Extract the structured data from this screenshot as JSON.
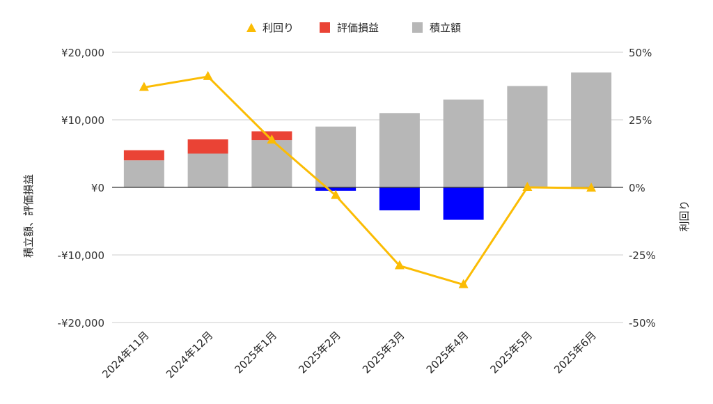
{
  "colors": {
    "contribution": "#b7b7b7",
    "gain_positive": "#ea4335",
    "gain_negative": "#0000ff",
    "yield_line": "#fbbc04",
    "grid": "#cccccc",
    "zero_line": "#333333"
  },
  "chart_data": {
    "type": "bar",
    "stacked": true,
    "categories": [
      "2024年11月",
      "2024年12月",
      "2025年1月",
      "2025年2月",
      "2025年3月",
      "2025年4月",
      "2025年5月",
      "2025年6月"
    ],
    "series": [
      {
        "name": "利回り",
        "type": "line",
        "axis": "right",
        "marker": "triangle",
        "values": [
          37,
          41,
          17.5,
          -3,
          -29,
          -36,
          0,
          -0.3
        ]
      },
      {
        "name": "評価損益",
        "type": "bar",
        "axis": "left",
        "values": [
          1500,
          2100,
          1300,
          -500,
          -3400,
          -4800,
          0,
          0
        ]
      },
      {
        "name": "積立額",
        "type": "bar",
        "axis": "left",
        "values": [
          4000,
          5000,
          7000,
          9000,
          11000,
          13000,
          15000,
          17000
        ]
      }
    ],
    "ylabel": "積立額、評価損益",
    "y2label": "利回り",
    "ylim": [
      -20000,
      20000
    ],
    "y2lim": [
      -50,
      50
    ],
    "yticks": [
      "¥20,000",
      "¥10,000",
      "¥0",
      "-¥10,000",
      "-¥20,000"
    ],
    "y2ticks": [
      "50%",
      "25%",
      "0%",
      "-25%",
      "-50%"
    ],
    "legend_position": "top",
    "grid": true
  }
}
